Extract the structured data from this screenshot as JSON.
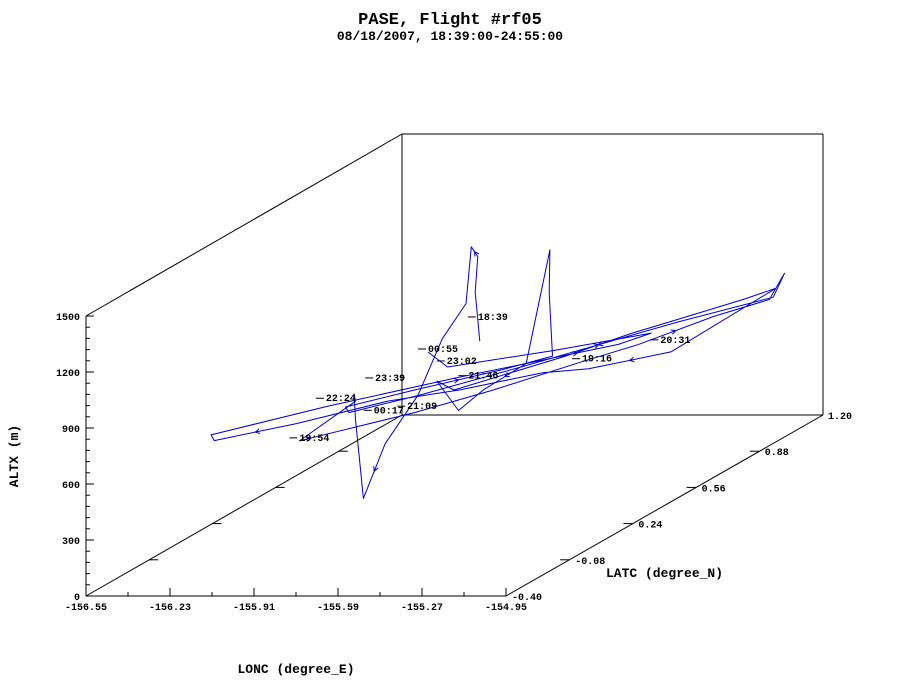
{
  "chart_data": {
    "type": "line",
    "title": "PASE, Flight #rf05",
    "subtitle": "08/18/2007, 18:39:00-24:55:00",
    "xlabel": "LONC (degree_E)",
    "ylabel": "LATC (degree_N)",
    "zlabel": "ALTX (m)",
    "x_ticks": [
      "-156.55",
      "-156.23",
      "-155.91",
      "-155.59",
      "-155.27",
      "-154.95"
    ],
    "y_ticks": [
      "-0.40",
      "-0.08",
      "0.24",
      "0.56",
      "0.88",
      "1.20"
    ],
    "z_ticks": [
      "0",
      "300",
      "600",
      "900",
      "1200",
      "1500"
    ],
    "xlim": [
      -156.55,
      -154.95
    ],
    "ylim": [
      -0.4,
      1.2
    ],
    "zlim": [
      0,
      1500
    ],
    "projection": "3d",
    "grid": false,
    "series_color": "#0000cc",
    "time_labels": [
      {
        "text": "18:39",
        "lon": -155.9,
        "lat": 0.72,
        "alt": 800
      },
      {
        "text": "19:16",
        "lon": -155.3,
        "lat": 0.45,
        "alt": 740
      },
      {
        "text": "19:54",
        "lon": -155.85,
        "lat": -0.25,
        "alt": 740
      },
      {
        "text": "20:31",
        "lon": -155.4,
        "lat": 0.98,
        "alt": 520
      },
      {
        "text": "21:09",
        "lon": -155.65,
        "lat": 0.03,
        "alt": 740
      },
      {
        "text": "21:46",
        "lon": -155.62,
        "lat": 0.3,
        "alt": 740
      },
      {
        "text": "22:24",
        "lon": -156.05,
        "lat": 0.15,
        "alt": 710
      },
      {
        "text": "23:02",
        "lon": -155.8,
        "lat": 0.43,
        "alt": 740
      },
      {
        "text": "23:39",
        "lon": -155.96,
        "lat": 0.28,
        "alt": 740
      },
      {
        "text": "00:17",
        "lon": -155.8,
        "lat": 0.06,
        "alt": 700
      },
      {
        "text": "00:55",
        "lon": -156.15,
        "lat": 0.8,
        "alt": 580
      }
    ],
    "track": [
      [
        -155.9,
        0.73,
        680
      ],
      [
        -155.91,
        0.72,
        950
      ],
      [
        -155.9,
        0.72,
        1140
      ],
      [
        -155.94,
        0.74,
        1180
      ],
      [
        -155.93,
        0.7,
        900
      ],
      [
        -155.96,
        0.62,
        760
      ],
      [
        -156.0,
        0.55,
        500
      ],
      [
        -156.05,
        0.45,
        300
      ],
      [
        -156.08,
        0.38,
        50
      ],
      [
        -156.05,
        0.3,
        520
      ],
      [
        -155.98,
        0.2,
        720
      ],
      [
        -155.9,
        0.1,
        740
      ],
      [
        -155.85,
        -0.25,
        740
      ],
      [
        -155.8,
        -0.2,
        740
      ],
      [
        -155.6,
        0.0,
        740
      ],
      [
        -155.45,
        0.2,
        740
      ],
      [
        -155.3,
        0.45,
        740
      ],
      [
        -155.2,
        0.6,
        740
      ],
      [
        -155.1,
        0.85,
        740
      ],
      [
        -155.0,
        1.0,
        740
      ],
      [
        -154.98,
        1.05,
        850
      ],
      [
        -155.0,
        1.02,
        740
      ],
      [
        -155.2,
        0.8,
        740
      ],
      [
        -155.5,
        0.4,
        740
      ],
      [
        -155.7,
        0.15,
        740
      ],
      [
        -155.85,
        0.0,
        740
      ],
      [
        -155.9,
        0.05,
        740
      ],
      [
        -155.75,
        0.2,
        740
      ],
      [
        -155.55,
        0.38,
        740
      ],
      [
        -155.45,
        0.5,
        740
      ],
      [
        -155.5,
        0.55,
        1050
      ],
      [
        -155.52,
        0.58,
        1260
      ],
      [
        -155.55,
        0.5,
        700
      ],
      [
        -155.6,
        0.35,
        650
      ],
      [
        -155.62,
        0.25,
        600
      ],
      [
        -155.65,
        0.18,
        800
      ],
      [
        -155.6,
        0.2,
        740
      ],
      [
        -155.4,
        0.5,
        740
      ],
      [
        -155.3,
        0.7,
        740
      ],
      [
        -155.2,
        0.85,
        740
      ],
      [
        -155.1,
        1.0,
        740
      ],
      [
        -155.05,
        1.1,
        740
      ],
      [
        -155.3,
        0.9,
        520
      ],
      [
        -155.5,
        0.75,
        520
      ],
      [
        -155.6,
        0.65,
        560
      ],
      [
        -155.8,
        0.5,
        560
      ],
      [
        -156.0,
        0.4,
        560
      ],
      [
        -156.2,
        0.2,
        560
      ],
      [
        -156.4,
        0.05,
        560
      ],
      [
        -156.45,
        0.1,
        560
      ],
      [
        -156.2,
        0.35,
        560
      ],
      [
        -155.9,
        0.6,
        560
      ],
      [
        -155.7,
        0.75,
        560
      ],
      [
        -155.5,
        0.9,
        560
      ],
      [
        -155.45,
        1.0,
        560
      ],
      [
        -155.7,
        0.85,
        560
      ],
      [
        -156.0,
        0.7,
        560
      ],
      [
        -156.15,
        0.8,
        580
      ]
    ]
  }
}
